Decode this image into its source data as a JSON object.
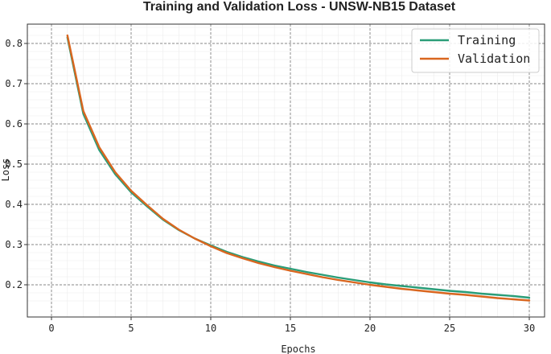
{
  "chart_data": {
    "type": "line",
    "title": "Training and Validation Loss - UNSW-NB15 Dataset",
    "xlabel": "Epochs",
    "ylabel": "Loss",
    "xlim": [
      0,
      30
    ],
    "ylim": [
      0.15,
      0.85
    ],
    "xticks": [
      0,
      5,
      10,
      15,
      20,
      25,
      30
    ],
    "yticks": [
      0.2,
      0.3,
      0.4,
      0.5,
      0.6,
      0.7,
      0.8
    ],
    "grid": true,
    "legend_position": "top-right",
    "x": [
      1,
      2,
      3,
      4,
      5,
      6,
      7,
      8,
      9,
      10,
      11,
      12,
      13,
      14,
      15,
      16,
      17,
      18,
      19,
      20,
      21,
      22,
      23,
      24,
      25,
      26,
      27,
      28,
      29,
      30
    ],
    "series": [
      {
        "name": "Training",
        "color": "#2a9d78",
        "values": [
          0.815,
          0.625,
          0.535,
          0.475,
          0.43,
          0.395,
          0.362,
          0.336,
          0.315,
          0.298,
          0.282,
          0.269,
          0.258,
          0.248,
          0.24,
          0.232,
          0.225,
          0.218,
          0.212,
          0.206,
          0.201,
          0.197,
          0.193,
          0.189,
          0.185,
          0.182,
          0.178,
          0.175,
          0.172,
          0.168
        ]
      },
      {
        "name": "Validation",
        "color": "#d9661f",
        "values": [
          0.82,
          0.632,
          0.542,
          0.48,
          0.434,
          0.398,
          0.364,
          0.337,
          0.315,
          0.296,
          0.279,
          0.266,
          0.254,
          0.244,
          0.235,
          0.227,
          0.219,
          0.212,
          0.206,
          0.2,
          0.195,
          0.19,
          0.186,
          0.182,
          0.178,
          0.175,
          0.171,
          0.167,
          0.164,
          0.161
        ]
      }
    ]
  }
}
